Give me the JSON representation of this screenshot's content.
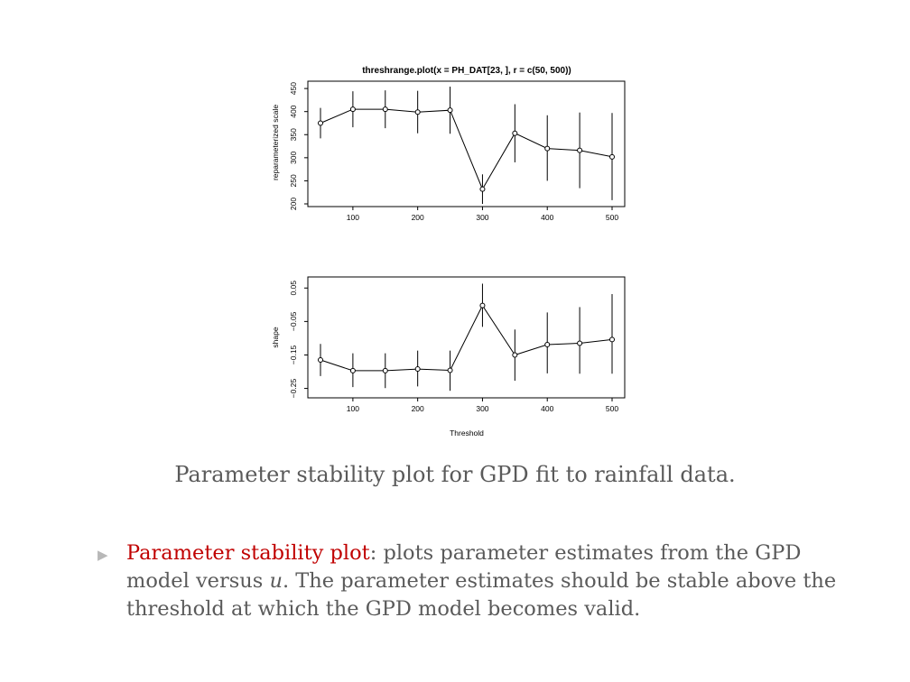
{
  "chart_data": [
    {
      "type": "scatter",
      "title": "threshrange.plot(x = PH_DAT[23, ], r = c(50, 500))",
      "xlabel": "",
      "ylabel": "reparameterized scale",
      "xlim": [
        50,
        500
      ],
      "ylim": [
        200,
        460
      ],
      "xticks": [
        100,
        200,
        300,
        400,
        500
      ],
      "yticks": [
        200,
        250,
        300,
        350,
        400,
        450
      ],
      "lines_connected": true,
      "error_bars": true,
      "points": [
        {
          "x": 50,
          "y": 375,
          "lo": 342,
          "hi": 408
        },
        {
          "x": 100,
          "y": 405,
          "lo": 366,
          "hi": 444
        },
        {
          "x": 150,
          "y": 405,
          "lo": 364,
          "hi": 446
        },
        {
          "x": 200,
          "y": 399,
          "lo": 353,
          "hi": 445
        },
        {
          "x": 250,
          "y": 403,
          "lo": 352,
          "hi": 454
        },
        {
          "x": 300,
          "y": 232,
          "lo": 200,
          "hi": 264
        },
        {
          "x": 350,
          "y": 353,
          "lo": 290,
          "hi": 416
        },
        {
          "x": 400,
          "y": 320,
          "lo": 250,
          "hi": 392
        },
        {
          "x": 450,
          "y": 316,
          "lo": 234,
          "hi": 398
        },
        {
          "x": 500,
          "y": 302,
          "lo": 208,
          "hi": 397
        }
      ]
    },
    {
      "type": "scatter",
      "title": "",
      "xlabel": "Threshold",
      "ylabel": "shape",
      "xlim": [
        50,
        500
      ],
      "ylim": [
        -0.27,
        0.075
      ],
      "xticks": [
        100,
        200,
        300,
        400,
        500
      ],
      "yticks": [
        -0.25,
        -0.15,
        -0.05,
        0.05
      ],
      "ytick_labels": [
        "−0.25",
        "−0.15",
        "−0.05",
        "0.05"
      ],
      "lines_connected": true,
      "error_bars": true,
      "points": [
        {
          "x": 50,
          "y": -0.165,
          "lo": -0.213,
          "hi": -0.117
        },
        {
          "x": 100,
          "y": -0.197,
          "lo": -0.246,
          "hi": -0.145
        },
        {
          "x": 150,
          "y": -0.197,
          "lo": -0.249,
          "hi": -0.145
        },
        {
          "x": 200,
          "y": -0.192,
          "lo": -0.244,
          "hi": -0.137
        },
        {
          "x": 250,
          "y": -0.196,
          "lo": -0.257,
          "hi": -0.137
        },
        {
          "x": 300,
          "y": -0.002,
          "lo": -0.066,
          "hi": 0.063
        },
        {
          "x": 350,
          "y": -0.15,
          "lo": -0.227,
          "hi": -0.074
        },
        {
          "x": 400,
          "y": -0.119,
          "lo": -0.205,
          "hi": -0.023
        },
        {
          "x": 450,
          "y": -0.115,
          "lo": -0.206,
          "hi": -0.007
        },
        {
          "x": 500,
          "y": -0.104,
          "lo": -0.206,
          "hi": 0.032
        }
      ]
    }
  ],
  "caption": "Parameter stability plot for GPD fit to rainfall data.",
  "bullet": {
    "marker": "▶",
    "term": "Parameter stability plot",
    "text_before_u": ": plots parameter estimates from the GPD model versus ",
    "var": "u",
    "text_after_u": ". The parameter estimates should be stable above the threshold at which the GPD model becomes valid."
  }
}
